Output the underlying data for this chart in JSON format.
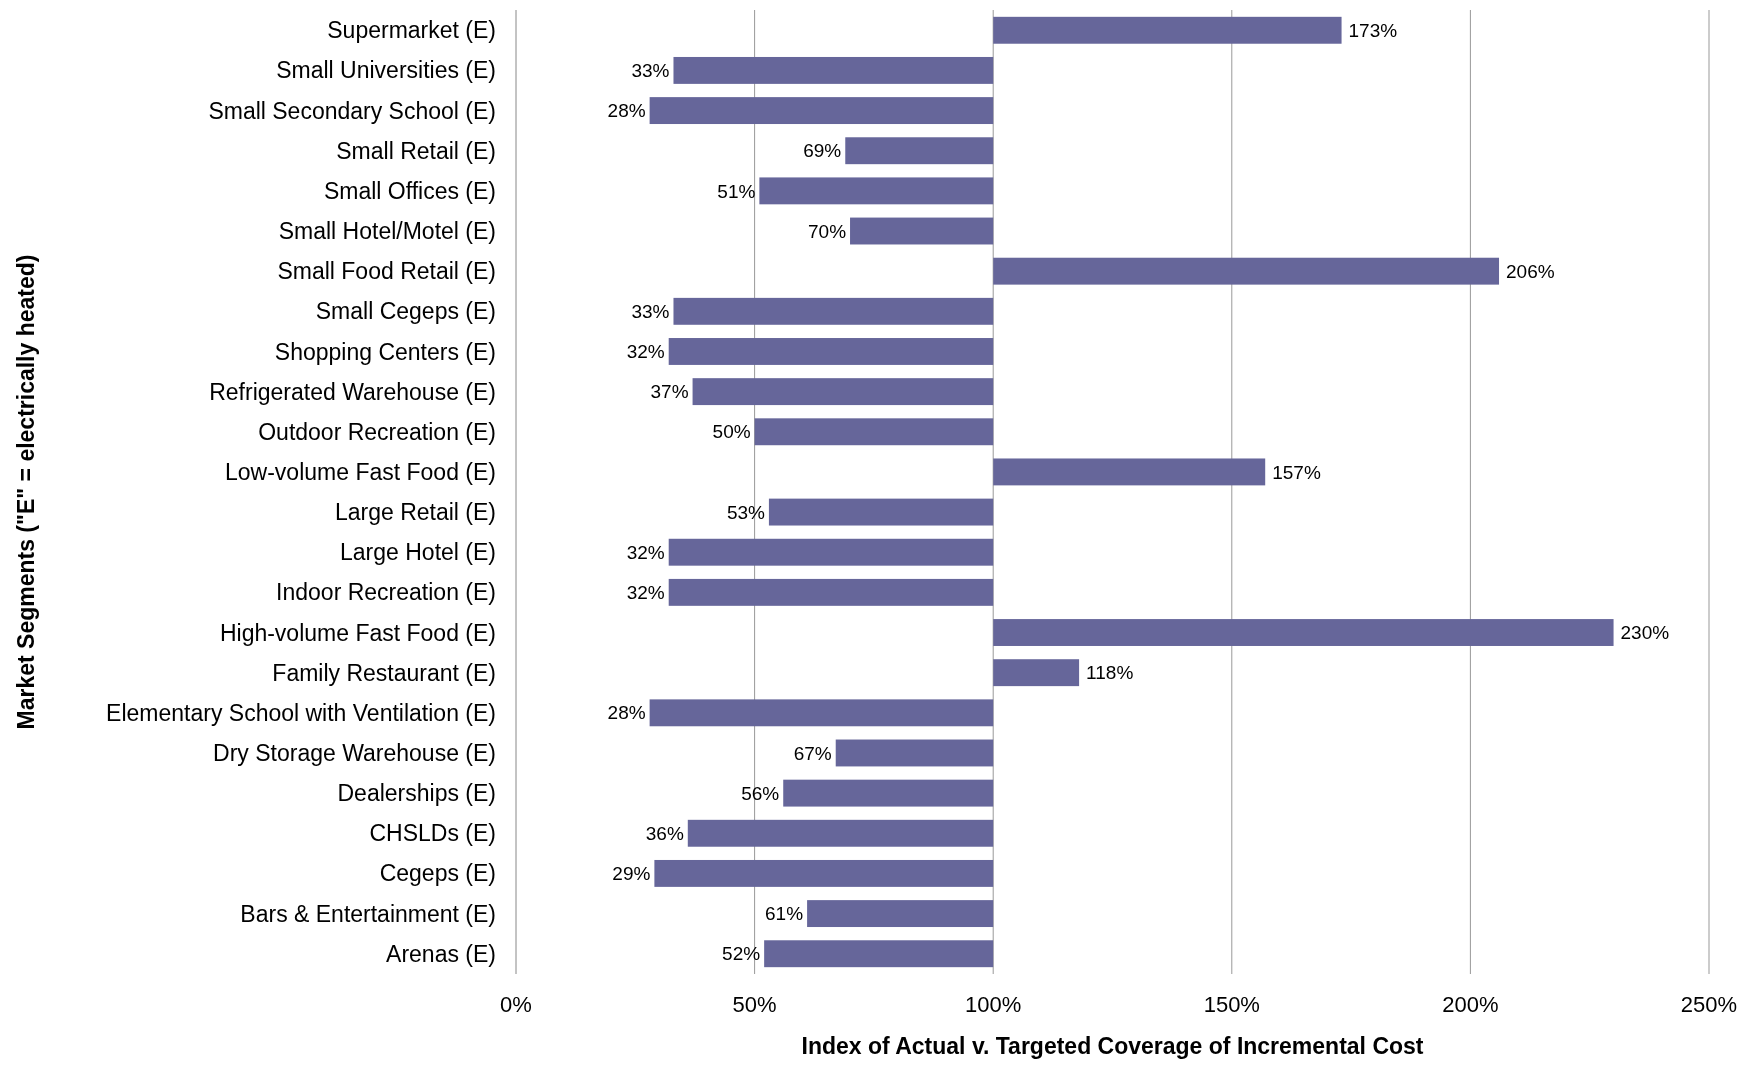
{
  "chart_data": {
    "type": "bar",
    "orientation": "horizontal",
    "xlabel": "Index of Actual v. Targeted Coverage of Incremental Cost",
    "ylabel": "Market Segments (\"E\" = electrically heated)",
    "categories": [
      "Supermarket (E)",
      "Small Universities (E)",
      "Small Secondary School (E)",
      "Small Retail (E)",
      "Small Offices (E)",
      "Small Hotel/Motel (E)",
      "Small Food Retail (E)",
      "Small Cegeps (E)",
      "Shopping Centers (E)",
      "Refrigerated Warehouse (E)",
      "Outdoor Recreation (E)",
      "Low-volume Fast Food (E)",
      "Large Retail (E)",
      "Large Hotel (E)",
      "Indoor Recreation (E)",
      "High-volume Fast Food (E)",
      "Family Restaurant (E)",
      "Elementary School with Ventilation (E)",
      "Dry Storage Warehouse (E)",
      "Dealerships (E)",
      "CHSLDs (E)",
      "Cegeps (E)",
      "Bars & Entertainment (E)",
      "Arenas (E)"
    ],
    "base": [
      100,
      100,
      100,
      100,
      100,
      100,
      100,
      100,
      100,
      100,
      100,
      100,
      100,
      100,
      100,
      100,
      100,
      100,
      100,
      100,
      100,
      100,
      100,
      100
    ],
    "values": [
      73,
      -67,
      -72,
      -31,
      -49,
      -30,
      106,
      -67,
      -68,
      -63,
      -50,
      57,
      -47,
      -68,
      -68,
      130,
      18,
      -72,
      -33,
      -44,
      -64,
      -71,
      -39,
      -48
    ],
    "value_labels": [
      "173%",
      "33%",
      "28%",
      "69%",
      "51%",
      "70%",
      "206%",
      "33%",
      "32%",
      "37%",
      "50%",
      "157%",
      "53%",
      "32%",
      "32%",
      "230%",
      "118%",
      "28%",
      "67%",
      "56%",
      "36%",
      "29%",
      "61%",
      "52%"
    ],
    "color": "#66669a",
    "xlim": [
      0,
      250
    ],
    "xticks": [
      {
        "value": 0,
        "label": "0%"
      },
      {
        "value": 50,
        "label": "50%"
      },
      {
        "value": 100,
        "label": "100%"
      },
      {
        "value": 150,
        "label": "150%"
      },
      {
        "value": 200,
        "label": "200%"
      },
      {
        "value": 250,
        "label": "250%"
      }
    ],
    "grid": "x"
  }
}
